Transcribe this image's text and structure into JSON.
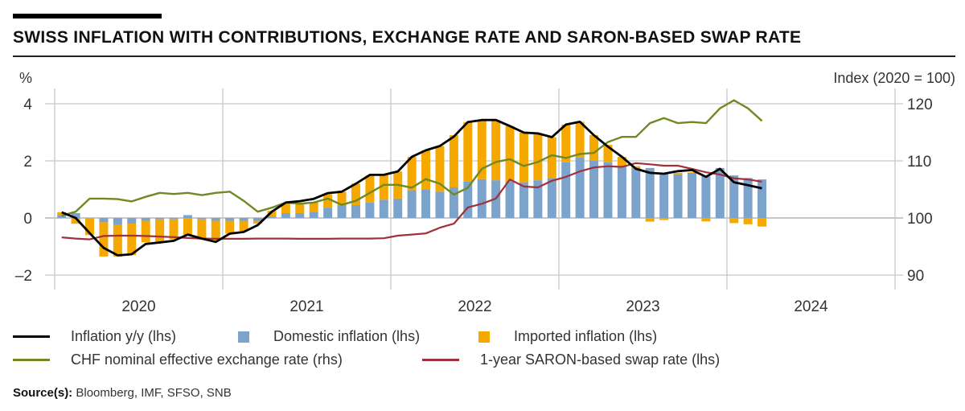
{
  "title": "SWISS INFLATION WITH CONTRIBUTIONS, EXCHANGE RATE AND SARON-BASED SWAP RATE",
  "source_label": "Source(s):",
  "source_text": "Bloomberg, IMF, SFSO, SNB",
  "colors": {
    "inflation": "#000000",
    "domestic": "#7ba3cb",
    "imported": "#f5a800",
    "neer": "#6f8a22",
    "saron": "#a0303a",
    "grid": "#c8c8c8"
  },
  "chart_data": {
    "type": "bar+line",
    "title": "SWISS INFLATION WITH CONTRIBUTIONS, EXCHANGE RATE AND SARON-BASED SWAP RATE",
    "ylabel_left": "%",
    "ylabel_right": "Index (2020 = 100)",
    "ylim_left": [
      -2.6,
      4.6
    ],
    "ylim_right": [
      87,
      123
    ],
    "yticks_left": [
      "4",
      "2",
      "0",
      "–2"
    ],
    "yticks_left_values": [
      4,
      2,
      0,
      -2
    ],
    "yticks_right": [
      "120",
      "110",
      "100",
      "90"
    ],
    "yticks_right_values": [
      120,
      110,
      100,
      90
    ],
    "x_tick_labels": [
      "2020",
      "2021",
      "2022",
      "2023",
      "2024"
    ],
    "x_start": "2020-01",
    "x_end": "2024-12",
    "frequency": "monthly",
    "grid": true,
    "legend_position": "bottom",
    "series": [
      {
        "name": "Inflation y/y (lhs)",
        "kind": "line",
        "axis": "left",
        "values": [
          0.2,
          0,
          -0.53,
          -1.05,
          -1.31,
          -1.27,
          -0.91,
          -0.86,
          -0.8,
          -0.58,
          -0.72,
          -0.84,
          -0.55,
          -0.49,
          -0.25,
          0.22,
          0.54,
          0.59,
          0.67,
          0.87,
          0.92,
          1.2,
          1.51,
          1.51,
          1.63,
          2.14,
          2.37,
          2.52,
          2.85,
          3.36,
          3.43,
          3.43,
          3.22,
          2.99,
          2.96,
          2.83,
          3.27,
          3.37,
          2.9,
          2.5,
          2.14,
          1.72,
          1.58,
          1.55,
          1.64,
          1.68,
          1.44,
          1.72,
          1.25,
          1.15,
          1.04
        ]
      },
      {
        "name": "Domestic inflation (lhs)",
        "kind": "bar",
        "axis": "left",
        "values": [
          0.1,
          0.17,
          0,
          -0.15,
          -0.25,
          -0.2,
          -0.1,
          -0.05,
          -0.05,
          0.1,
          -0.05,
          -0.1,
          -0.1,
          -0.1,
          -0.1,
          0.05,
          0.17,
          0.17,
          0.22,
          0.36,
          0.45,
          0.45,
          0.54,
          0.64,
          0.68,
          0.97,
          1.01,
          0.92,
          1.07,
          1.27,
          1.36,
          1.32,
          1.27,
          1.25,
          1.32,
          1.38,
          1.95,
          2.11,
          2.0,
          1.95,
          1.8,
          1.75,
          1.75,
          1.53,
          1.53,
          1.58,
          1.46,
          1.75,
          1.49,
          1.4,
          1.35
        ]
      },
      {
        "name": "Imported inflation (lhs)",
        "kind": "bar",
        "axis": "left",
        "values": [
          0.1,
          -0.2,
          -0.6,
          -1.2,
          -1.1,
          -1.1,
          -0.75,
          -0.8,
          -0.7,
          -0.6,
          -0.7,
          -0.7,
          -0.45,
          -0.35,
          -0.1,
          0.2,
          0.33,
          0.37,
          0.32,
          0.47,
          0.47,
          0.75,
          0.94,
          0.87,
          0.95,
          1.17,
          1.36,
          1.6,
          1.83,
          2.09,
          2.07,
          2.11,
          1.95,
          1.74,
          1.64,
          1.45,
          1.32,
          1.26,
          0.9,
          0.61,
          0.34,
          0.06,
          -0.13,
          -0.07,
          0.05,
          0.02,
          -0.12,
          -0.02,
          -0.18,
          -0.22,
          -0.3
        ]
      },
      {
        "name": "CHF nominal effective exchange rate (rhs)",
        "kind": "line",
        "axis": "right",
        "values": [
          100.4,
          101.1,
          103.4,
          103.4,
          103.3,
          102.9,
          103.7,
          104.4,
          104.2,
          104.4,
          104.0,
          104.4,
          104.6,
          103.0,
          101.1,
          101.8,
          102.7,
          102.5,
          102.7,
          103.4,
          102.3,
          103.0,
          104.4,
          105.8,
          105.8,
          105.3,
          106.8,
          106.0,
          104.1,
          105.3,
          108.6,
          109.8,
          110.3,
          109.1,
          109.8,
          111.0,
          110.5,
          111.2,
          111.4,
          113.3,
          114.2,
          114.2,
          116.6,
          117.5,
          116.6,
          116.8,
          116.6,
          119.2,
          120.6,
          119.2,
          117.0
        ]
      },
      {
        "name": "1-year SARON-based swap rate (lhs)",
        "kind": "line",
        "axis": "left",
        "values": [
          -0.68,
          -0.72,
          -0.75,
          -0.63,
          -0.62,
          -0.62,
          -0.63,
          -0.65,
          -0.67,
          -0.7,
          -0.72,
          -0.73,
          -0.73,
          -0.73,
          -0.72,
          -0.72,
          -0.72,
          -0.73,
          -0.73,
          -0.73,
          -0.72,
          -0.72,
          -0.72,
          -0.71,
          -0.62,
          -0.58,
          -0.54,
          -0.34,
          -0.2,
          0.37,
          0.5,
          0.68,
          1.35,
          1.1,
          1.07,
          1.3,
          1.44,
          1.63,
          1.77,
          1.81,
          1.79,
          1.92,
          1.88,
          1.83,
          1.83,
          1.72,
          1.6,
          1.52,
          1.39,
          1.35,
          1.27
        ]
      }
    ]
  }
}
